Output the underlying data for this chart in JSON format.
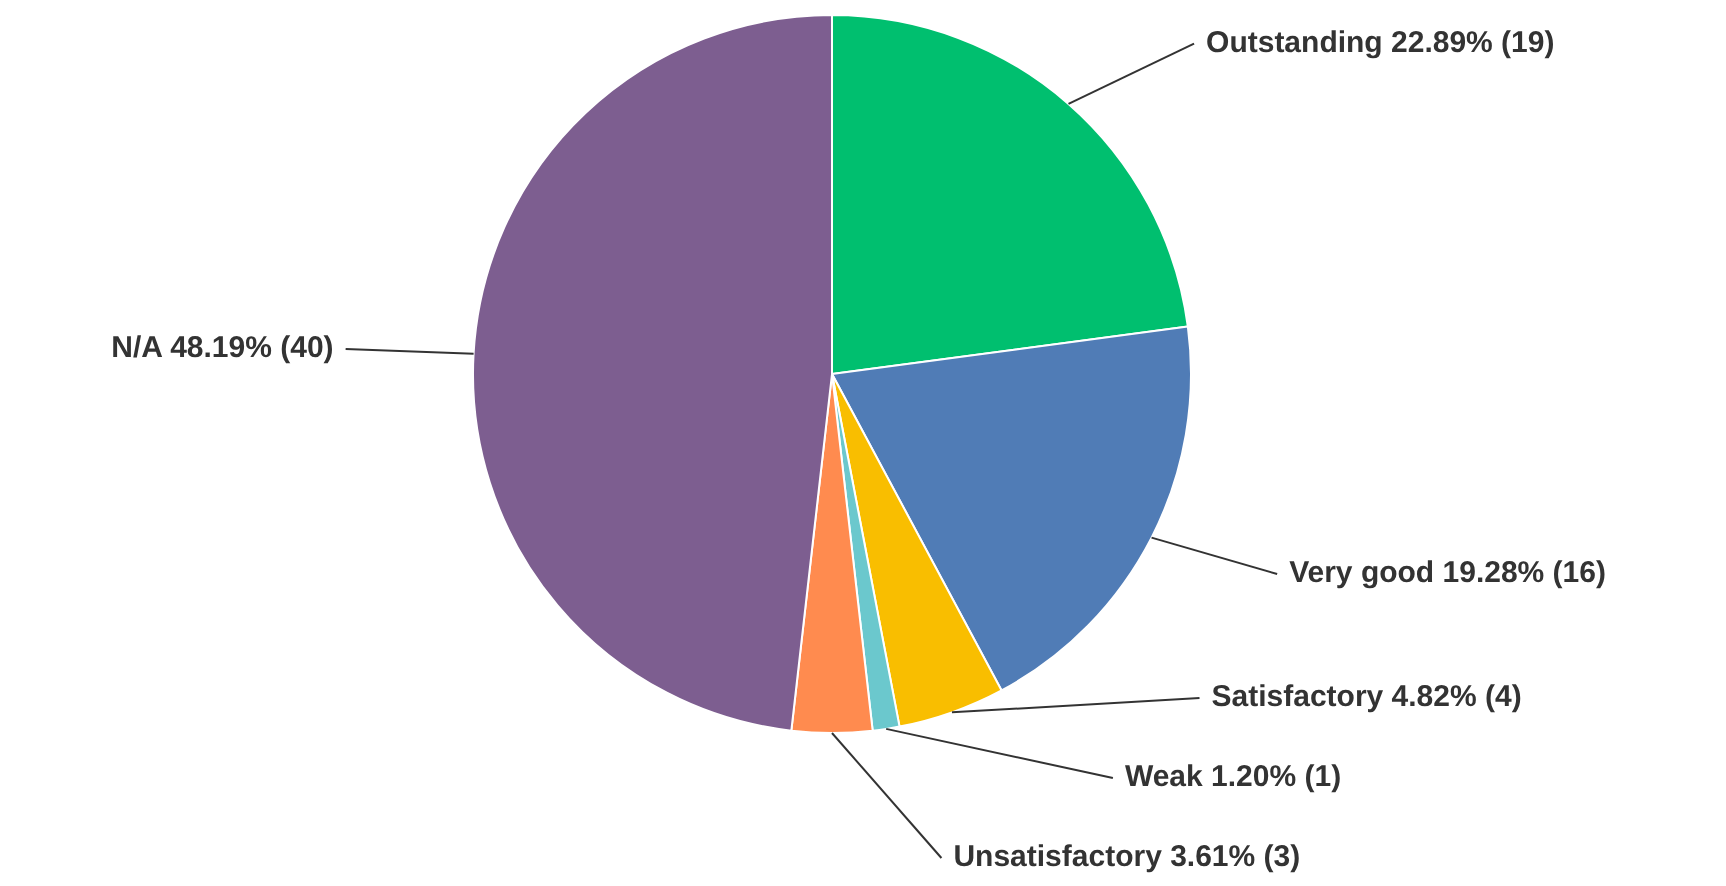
{
  "chart_data": {
    "type": "pie",
    "categories": [
      "Outstanding",
      "Very good",
      "Satisfactory",
      "Weak",
      "Unsatisfactory",
      "N/A"
    ],
    "values": [
      19,
      16,
      4,
      1,
      3,
      40
    ],
    "value_labels": [
      "22.89% (19)",
      "19.28% (16)",
      "4.82% (4)",
      "1.20% (1)",
      "3.61% (3)",
      "48.19% (40)"
    ],
    "colors": [
      "#00bf6f",
      "#507cb6",
      "#f9be00",
      "#6bc8cd",
      "#ff8b4f",
      "#7d5e90"
    ]
  }
}
